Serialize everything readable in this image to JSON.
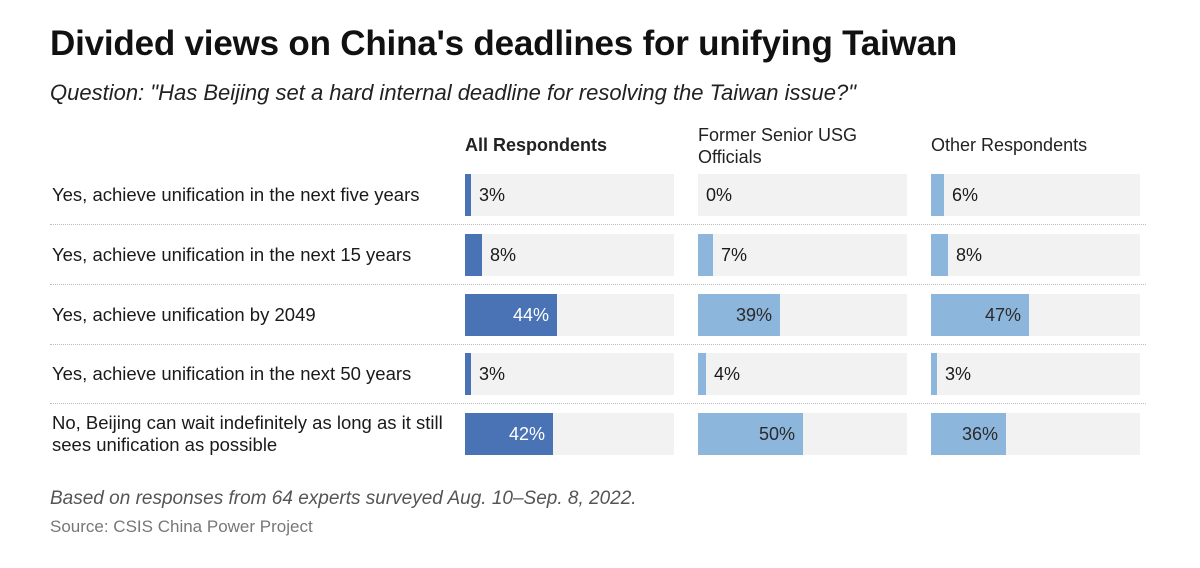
{
  "title": "Divided views on China's deadlines for unifying Taiwan",
  "subtitle": "Question: \"Has Beijing set a hard internal deadline for resolving the Taiwan issue?\"",
  "footnote": "Based on responses from 64 experts surveyed Aug. 10–Sep. 8, 2022.",
  "source": "Source: CSIS China Power Project",
  "colors": {
    "all": "#4a73b5",
    "others": "#8db6dc",
    "track": "#f2f2f2"
  },
  "chart_data": {
    "type": "bar",
    "orientation": "horizontal",
    "categories": [
      "Yes, achieve unification in the next five years",
      "Yes, achieve unification in the next 15 years",
      "Yes, achieve unification by 2049",
      "Yes, achieve unification in the next 50 years",
      "No, Beijing can wait indefinitely as long as it still sees unification as possible"
    ],
    "series": [
      {
        "name": "All Respondents",
        "values": [
          3,
          8,
          44,
          3,
          42
        ],
        "labels": [
          "3%",
          "8%",
          "44%",
          "3%",
          "42%"
        ]
      },
      {
        "name": "Former Senior USG Officials",
        "values": [
          0,
          7,
          39,
          4,
          50
        ],
        "labels": [
          "0%",
          "7%",
          "39%",
          "4%",
          "50%"
        ]
      },
      {
        "name": "Other Respondents",
        "values": [
          6,
          8,
          47,
          3,
          36
        ],
        "labels": [
          "6%",
          "8%",
          "47%",
          "3%",
          "36%"
        ]
      }
    ],
    "xlim": [
      0,
      100
    ]
  }
}
